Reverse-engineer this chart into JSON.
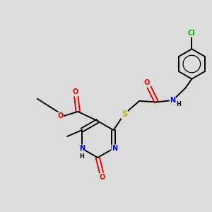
{
  "background_color": "#dcdcdc",
  "fig_size": [
    3.0,
    3.0
  ],
  "dpi": 100,
  "atom_colors": {
    "C": "#000000",
    "N": "#0000ee",
    "O": "#ee0000",
    "S": "#bbbb00",
    "Cl": "#00aa00",
    "H": "#000000"
  },
  "bond_color": "#000000",
  "bond_width": 1.4,
  "font_size": 7.0
}
